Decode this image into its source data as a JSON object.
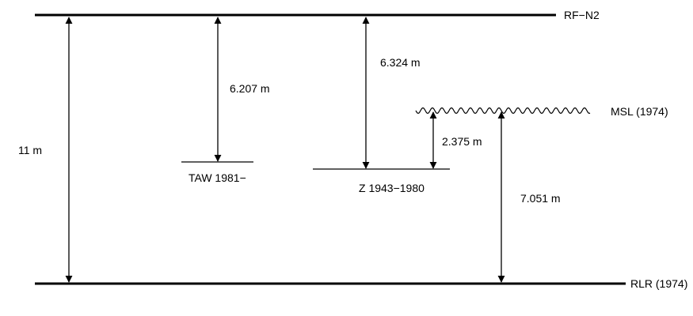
{
  "datums": {
    "rf_n2": "RF−N2",
    "rlr_1974": "RLR (1974)",
    "msl_1974": "MSL (1974)",
    "taw_1981": "TAW 1981−",
    "z_1943_1980": "Z 1943−1980"
  },
  "measurements": {
    "rf_to_rlr": "11 m",
    "rf_to_taw": "6.207 m",
    "rf_to_z": "6.324 m",
    "z_to_msl": "2.375 m",
    "msl_to_rlr": "7.051 m"
  },
  "colors": {
    "line": "#000000",
    "background": "#ffffff"
  }
}
